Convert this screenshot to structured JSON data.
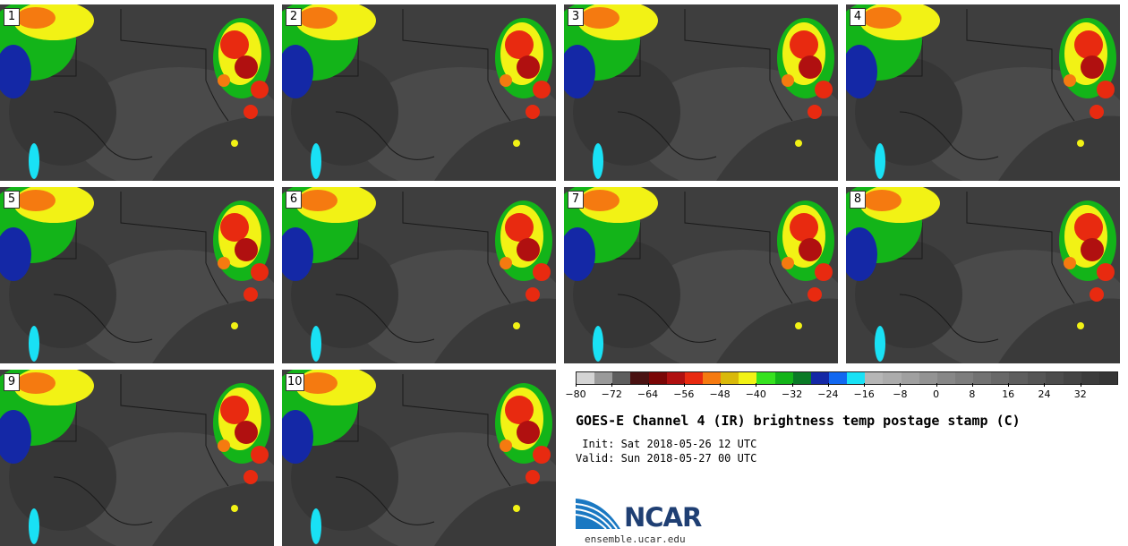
{
  "panels": [
    {
      "label": "1"
    },
    {
      "label": "2"
    },
    {
      "label": "3"
    },
    {
      "label": "4"
    },
    {
      "label": "5"
    },
    {
      "label": "6"
    },
    {
      "label": "7"
    },
    {
      "label": "8"
    },
    {
      "label": "9"
    },
    {
      "label": "10"
    }
  ],
  "colorbar": {
    "colors": [
      "#d4d4d4",
      "#9a9a9a",
      "#5e5e5e",
      "#4a1212",
      "#7a0606",
      "#b01010",
      "#e82a10",
      "#f57a10",
      "#d9b90a",
      "#f2f215",
      "#36e21f",
      "#13b419",
      "#0a7a26",
      "#1428a6",
      "#1268f0",
      "#19e1f5",
      "#b6b6b6",
      "#acacac",
      "#a0a0a0",
      "#939393",
      "#878787",
      "#7d7d7d",
      "#727272",
      "#686868",
      "#5e5e5e",
      "#555555",
      "#4c4c4c",
      "#444444",
      "#3c3c3c",
      "#353535"
    ],
    "tick_labels": [
      "−80",
      "−72",
      "−64",
      "−56",
      "−48",
      "−40",
      "−32",
      "−24",
      "−16",
      "−8",
      "0",
      "8",
      "16",
      "24",
      "32"
    ]
  },
  "title": "GOES-E Channel 4 (IR) brightness temp postage stamp (C)",
  "init_line": " Init: Sat 2018-05-26 12 UTC",
  "valid_line": "Valid: Sun 2018-05-27 00 UTC",
  "logo": {
    "name": "NCAR",
    "url": "ensemble.ucar.edu"
  }
}
